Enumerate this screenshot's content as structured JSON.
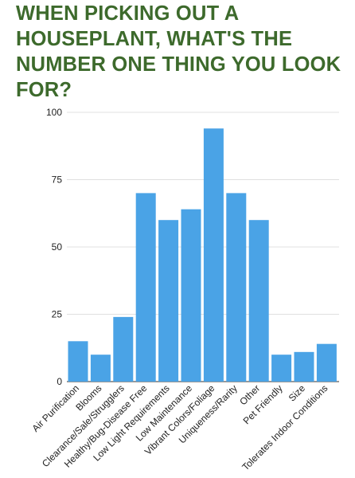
{
  "page": {
    "title": "WHEN PICKING OUT A HOUSEPLANT, WHAT'S THE NUMBER ONE THING YOU LOOK FOR?"
  },
  "chart_data": {
    "type": "bar",
    "title": "WHEN PICKING OUT A HOUSEPLANT, WHAT'S THE NUMBER ONE THING YOU LOOK FOR?",
    "xlabel": "",
    "ylabel": "",
    "categories": [
      "Air Purification",
      "Blooms",
      "Clearance/Sale/Strugglers",
      "Healthy/Bug-Disease Free",
      "Low Light Requirements",
      "Low Maintenance",
      "Vibrant Colors/Foliage",
      "Uniqueness/Rarity",
      "Other",
      "Pet Friendly",
      "Size",
      "Tolerates Indoor Conditions"
    ],
    "values": [
      15,
      10,
      24,
      70,
      60,
      64,
      94,
      70,
      60,
      10,
      11,
      14
    ],
    "ylim": [
      0,
      100
    ],
    "yticks": [
      "0",
      "25",
      "50",
      "75",
      "100"
    ],
    "grid": true,
    "legend": "none",
    "bar_color": "#4aa3e6",
    "title_color": "#3d6a2c"
  }
}
